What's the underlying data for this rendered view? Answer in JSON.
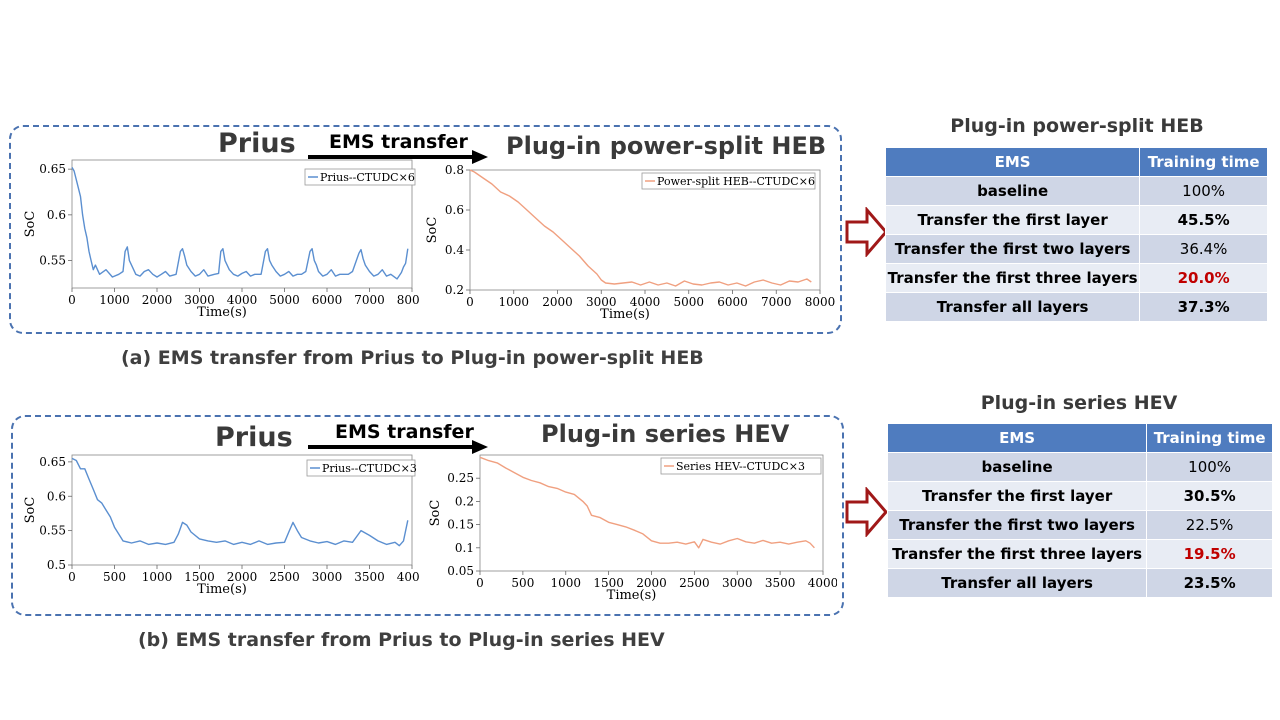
{
  "panel_a": {
    "left_title": "Prius",
    "arrow_label": "EMS transfer",
    "right_title": "Plug-in power-split HEB",
    "caption": "(a) EMS transfer from Prius to Plug-in power-split HEB"
  },
  "panel_b": {
    "left_title": "Prius",
    "arrow_label": "EMS transfer",
    "right_title": "Plug-in series HEV",
    "caption": "(b) EMS transfer from Prius to Plug-in series HEV"
  },
  "table_a": {
    "title": "Plug-in power-split HEB",
    "headers": [
      "EMS",
      "Training time"
    ],
    "rows": [
      {
        "name": "baseline",
        "value": "100%",
        "style": "plain"
      },
      {
        "name": "Transfer the first layer",
        "value": "45.5%",
        "style": "bold"
      },
      {
        "name": "Transfer the first two layers",
        "value": "36.4%",
        "style": "plain"
      },
      {
        "name": "Transfer the first three layers",
        "value": "20.0%",
        "style": "red"
      },
      {
        "name": "Transfer all layers",
        "value": "37.3%",
        "style": "bold"
      }
    ]
  },
  "table_b": {
    "title": "Plug-in series HEV",
    "headers": [
      "EMS",
      "Training time"
    ],
    "rows": [
      {
        "name": "baseline",
        "value": "100%",
        "style": "plain"
      },
      {
        "name": "Transfer the first layer",
        "value": "30.5%",
        "style": "bold"
      },
      {
        "name": "Transfer the first two layers",
        "value": "22.5%",
        "style": "plain"
      },
      {
        "name": "Transfer the first three layers",
        "value": "19.5%",
        "style": "red"
      },
      {
        "name": "Transfer all layers",
        "value": "23.5%",
        "style": "bold"
      }
    ]
  },
  "colors": {
    "blue_series": "#5b8fd0",
    "orange_series": "#f0a080",
    "highlight_red": "#c00000",
    "header_blue": "#4f7cbf",
    "arrow_red": "#a01818",
    "dashed_border": "#4a72b0"
  },
  "chart_data": [
    {
      "id": "a_left",
      "type": "line",
      "xlabel": "Time(s)",
      "ylabel": "SoC",
      "xlim": [
        0,
        8000
      ],
      "ylim": [
        0.52,
        0.66
      ],
      "xticks": [
        0,
        1000,
        2000,
        3000,
        4000,
        5000,
        6000,
        7000,
        8000
      ],
      "yticks": [
        0.55,
        0.6,
        0.65
      ],
      "ytick_labels": [
        "0.55",
        "0.6",
        "0.65"
      ],
      "series": [
        {
          "name": "Prius--CTUDC×6",
          "x": [
            0,
            50,
            120,
            200,
            250,
            300,
            350,
            400,
            450,
            500,
            550,
            650,
            800,
            950,
            1100,
            1200,
            1250,
            1300,
            1350,
            1400,
            1500,
            1600,
            1700,
            1800,
            1900,
            2000,
            2100,
            2200,
            2300,
            2450,
            2550,
            2600,
            2650,
            2700,
            2800,
            2900,
            3000,
            3100,
            3200,
            3350,
            3450,
            3500,
            3550,
            3600,
            3700,
            3800,
            3900,
            4000,
            4100,
            4200,
            4300,
            4450,
            4550,
            4600,
            4650,
            4700,
            4800,
            4900,
            5000,
            5100,
            5200,
            5300,
            5400,
            5500,
            5600,
            5650,
            5700,
            5750,
            5800,
            5900,
            6000,
            6100,
            6200,
            6300,
            6500,
            6600,
            6750,
            6800,
            6850,
            6900,
            7000,
            7100,
            7200,
            7300,
            7400,
            7500,
            7650,
            7750,
            7800,
            7850,
            7900
          ],
          "y": [
            0.652,
            0.648,
            0.635,
            0.62,
            0.6,
            0.585,
            0.575,
            0.56,
            0.55,
            0.54,
            0.545,
            0.535,
            0.54,
            0.532,
            0.535,
            0.538,
            0.56,
            0.565,
            0.55,
            0.545,
            0.535,
            0.533,
            0.538,
            0.54,
            0.535,
            0.532,
            0.535,
            0.538,
            0.533,
            0.535,
            0.56,
            0.563,
            0.555,
            0.545,
            0.538,
            0.533,
            0.535,
            0.54,
            0.533,
            0.535,
            0.536,
            0.56,
            0.563,
            0.55,
            0.54,
            0.535,
            0.533,
            0.536,
            0.538,
            0.533,
            0.535,
            0.535,
            0.56,
            0.563,
            0.55,
            0.545,
            0.538,
            0.533,
            0.535,
            0.538,
            0.533,
            0.535,
            0.535,
            0.538,
            0.56,
            0.563,
            0.55,
            0.545,
            0.538,
            0.533,
            0.535,
            0.54,
            0.533,
            0.535,
            0.535,
            0.538,
            0.558,
            0.562,
            0.552,
            0.545,
            0.538,
            0.533,
            0.535,
            0.54,
            0.533,
            0.535,
            0.53,
            0.537,
            0.543,
            0.547,
            0.563
          ]
        }
      ]
    },
    {
      "id": "a_right",
      "type": "line",
      "xlabel": "Time(s)",
      "ylabel": "SoC",
      "xlim": [
        0,
        8000
      ],
      "ylim": [
        0.2,
        0.8
      ],
      "xticks": [
        0,
        1000,
        2000,
        3000,
        4000,
        5000,
        6000,
        7000,
        8000
      ],
      "yticks": [
        0.2,
        0.4,
        0.6,
        0.8
      ],
      "ytick_labels": [
        "0.2",
        "0.4",
        "0.6",
        "0.8"
      ],
      "series": [
        {
          "name": "Power-split HEB--CTUDC×6",
          "x": [
            0,
            100,
            300,
            500,
            700,
            900,
            1100,
            1300,
            1500,
            1700,
            1900,
            2100,
            2300,
            2500,
            2700,
            2900,
            3000,
            3100,
            3300,
            3500,
            3700,
            3900,
            4100,
            4300,
            4500,
            4700,
            4900,
            5100,
            5300,
            5500,
            5700,
            5900,
            6100,
            6300,
            6500,
            6700,
            6900,
            7100,
            7300,
            7500,
            7700,
            7800
          ],
          "y": [
            0.8,
            0.79,
            0.76,
            0.73,
            0.69,
            0.67,
            0.64,
            0.6,
            0.56,
            0.52,
            0.49,
            0.45,
            0.41,
            0.37,
            0.32,
            0.28,
            0.25,
            0.235,
            0.23,
            0.235,
            0.24,
            0.225,
            0.24,
            0.225,
            0.235,
            0.22,
            0.245,
            0.23,
            0.225,
            0.235,
            0.24,
            0.225,
            0.235,
            0.22,
            0.24,
            0.25,
            0.235,
            0.225,
            0.245,
            0.24,
            0.255,
            0.24
          ]
        }
      ]
    },
    {
      "id": "b_left",
      "type": "line",
      "xlabel": "Time(s)",
      "ylabel": "SoC",
      "xlim": [
        0,
        4000
      ],
      "ylim": [
        0.5,
        0.66
      ],
      "xticks": [
        0,
        500,
        1000,
        1500,
        2000,
        2500,
        3000,
        3500,
        4000
      ],
      "yticks": [
        0.5,
        0.55,
        0.6,
        0.65
      ],
      "ytick_labels": [
        "0.5",
        "0.55",
        "0.6",
        "0.65"
      ],
      "series": [
        {
          "name": "Prius--CTUDC×3",
          "x": [
            0,
            50,
            100,
            150,
            200,
            250,
            300,
            350,
            400,
            450,
            500,
            550,
            600,
            700,
            800,
            900,
            1000,
            1100,
            1200,
            1250,
            1300,
            1350,
            1400,
            1500,
            1600,
            1700,
            1800,
            1900,
            2000,
            2100,
            2200,
            2300,
            2400,
            2500,
            2550,
            2600,
            2650,
            2700,
            2800,
            2900,
            3000,
            3100,
            3200,
            3300,
            3400,
            3500,
            3600,
            3700,
            3800,
            3850,
            3900,
            3950
          ],
          "y": [
            0.655,
            0.652,
            0.64,
            0.64,
            0.625,
            0.61,
            0.595,
            0.59,
            0.58,
            0.57,
            0.555,
            0.545,
            0.535,
            0.532,
            0.535,
            0.53,
            0.532,
            0.53,
            0.533,
            0.545,
            0.562,
            0.558,
            0.548,
            0.538,
            0.535,
            0.533,
            0.535,
            0.53,
            0.533,
            0.53,
            0.535,
            0.53,
            0.532,
            0.533,
            0.548,
            0.562,
            0.55,
            0.54,
            0.535,
            0.532,
            0.534,
            0.53,
            0.535,
            0.533,
            0.55,
            0.543,
            0.535,
            0.53,
            0.533,
            0.528,
            0.535,
            0.565
          ]
        }
      ]
    },
    {
      "id": "b_right",
      "type": "line",
      "xlabel": "Time(s)",
      "ylabel": "SoC",
      "xlim": [
        0,
        4000
      ],
      "ylim": [
        0.05,
        0.3
      ],
      "xticks": [
        0,
        500,
        1000,
        1500,
        2000,
        2500,
        3000,
        3500,
        4000
      ],
      "yticks": [
        0.05,
        0.1,
        0.15,
        0.2,
        0.25
      ],
      "ytick_labels": [
        "0.05",
        "0.1",
        "0.15",
        "0.2",
        "0.25"
      ],
      "series": [
        {
          "name": "Series HEV--CTUDC×3",
          "x": [
            0,
            100,
            200,
            300,
            400,
            500,
            600,
            700,
            800,
            900,
            1000,
            1100,
            1200,
            1250,
            1300,
            1400,
            1500,
            1600,
            1700,
            1800,
            1900,
            2000,
            2100,
            2200,
            2300,
            2400,
            2500,
            2550,
            2600,
            2700,
            2800,
            2900,
            3000,
            3100,
            3200,
            3300,
            3400,
            3500,
            3600,
            3700,
            3800,
            3850,
            3900
          ],
          "y": [
            0.295,
            0.288,
            0.283,
            0.272,
            0.262,
            0.252,
            0.245,
            0.24,
            0.232,
            0.228,
            0.22,
            0.215,
            0.2,
            0.19,
            0.17,
            0.165,
            0.155,
            0.15,
            0.145,
            0.138,
            0.13,
            0.115,
            0.11,
            0.11,
            0.112,
            0.108,
            0.113,
            0.1,
            0.118,
            0.112,
            0.108,
            0.115,
            0.12,
            0.113,
            0.11,
            0.116,
            0.11,
            0.112,
            0.108,
            0.112,
            0.115,
            0.11,
            0.1
          ]
        }
      ]
    }
  ]
}
